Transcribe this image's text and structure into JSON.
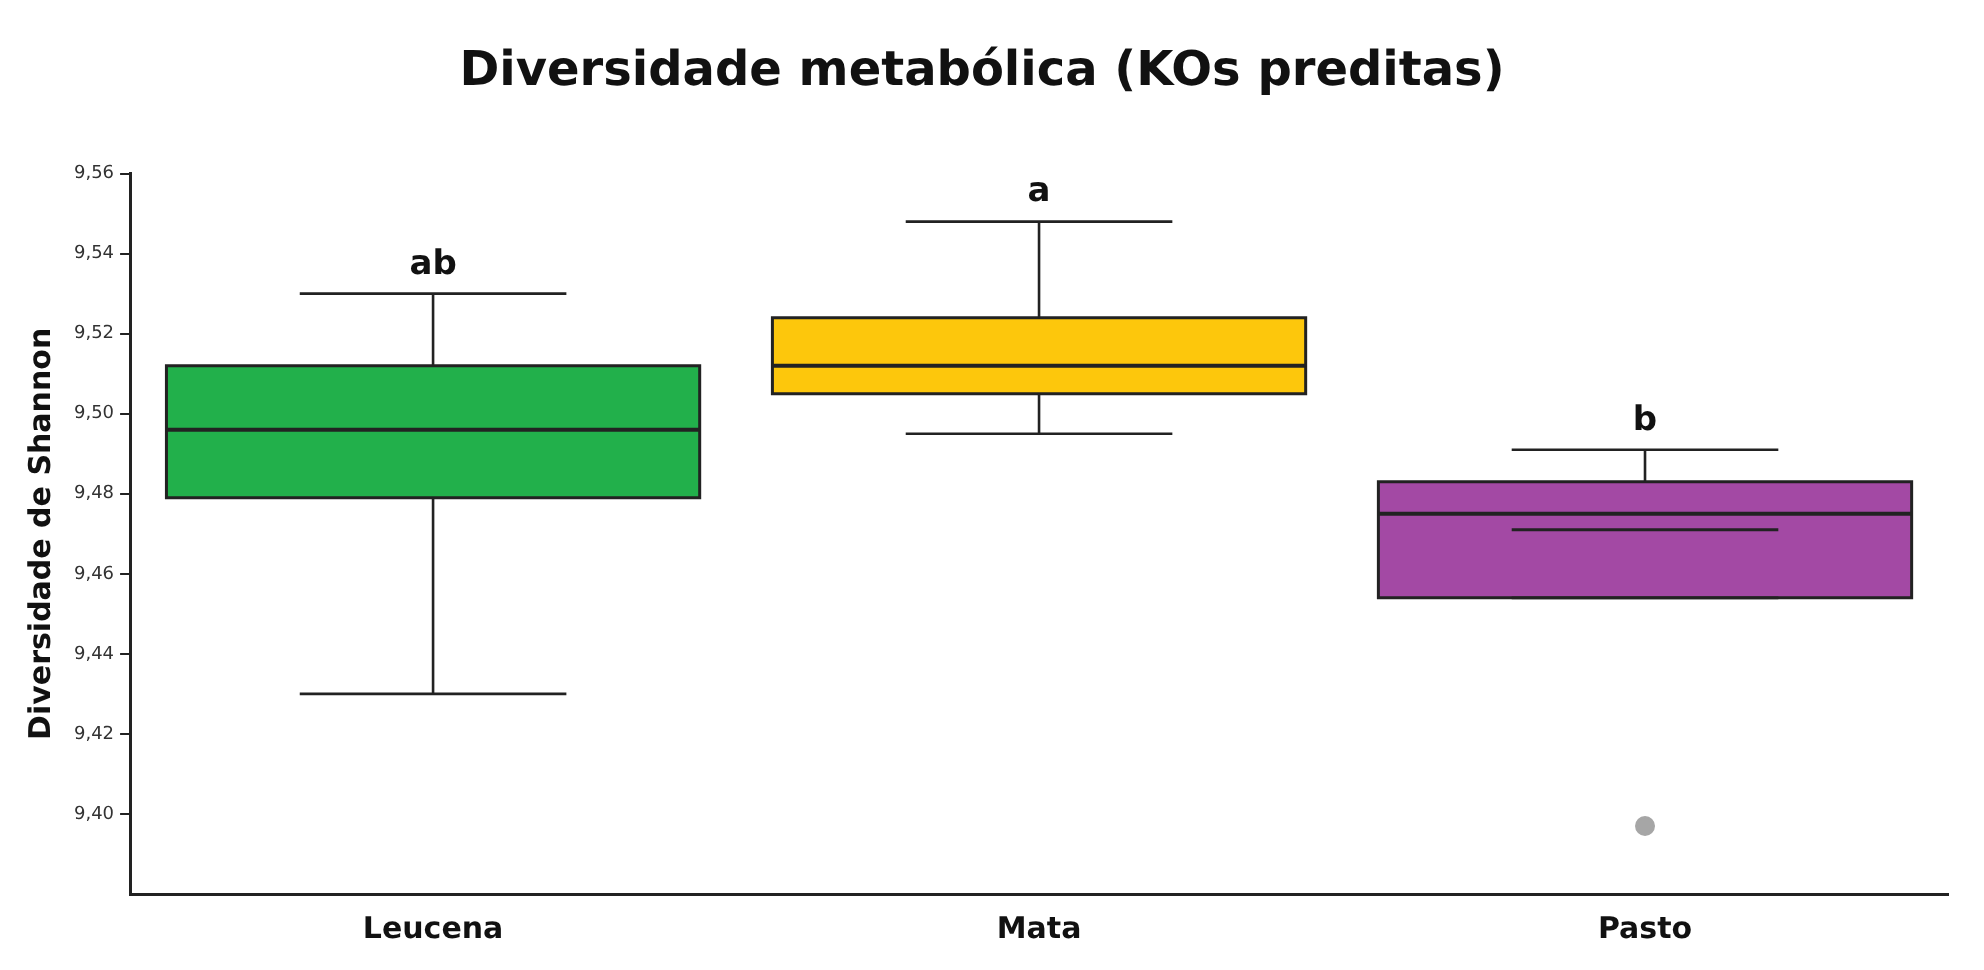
{
  "chart_data": {
    "type": "box",
    "title": "Diversidade metabólica (KOs preditas)",
    "ylabel": "Diversidade de Shannon",
    "categories": [
      "Leucena",
      "Mata",
      "Pasto"
    ],
    "colors": [
      "#22b04b",
      "#fdc70c",
      "#a349a4"
    ],
    "boxes": [
      {
        "low": 9.43,
        "q1": 9.479,
        "median": 9.496,
        "q3": 9.512,
        "high": 9.53
      },
      {
        "low": 9.495,
        "q1": 9.505,
        "median": 9.512,
        "q3": 9.524,
        "high": 9.548
      },
      {
        "low": 9.454,
        "q1": 9.454,
        "median": 9.475,
        "q3": 9.483,
        "high": 9.491,
        "mean": 9.471,
        "outliers": [
          9.397
        ]
      }
    ],
    "ylim": [
      9.38,
      9.56
    ],
    "yticks": [
      {
        "value": 9.4,
        "label": "9,40"
      },
      {
        "value": 9.42,
        "label": "9,42"
      },
      {
        "value": 9.44,
        "label": "9,44"
      },
      {
        "value": 9.46,
        "label": "9,46"
      },
      {
        "value": 9.48,
        "label": "9,48"
      },
      {
        "value": 9.5,
        "label": "9,50"
      },
      {
        "value": 9.52,
        "label": "9,52"
      },
      {
        "value": 9.54,
        "label": "9,54"
      },
      {
        "value": 9.56,
        "label": "9,56"
      }
    ],
    "annotations": [
      {
        "text": "ab",
        "x": "Leucena",
        "y": 9.53
      },
      {
        "text": "a",
        "x": "Mata",
        "y": 9.548
      },
      {
        "text": "b",
        "x": "Pasto",
        "y": 9.491
      }
    ],
    "grid": false,
    "legend": false
  }
}
